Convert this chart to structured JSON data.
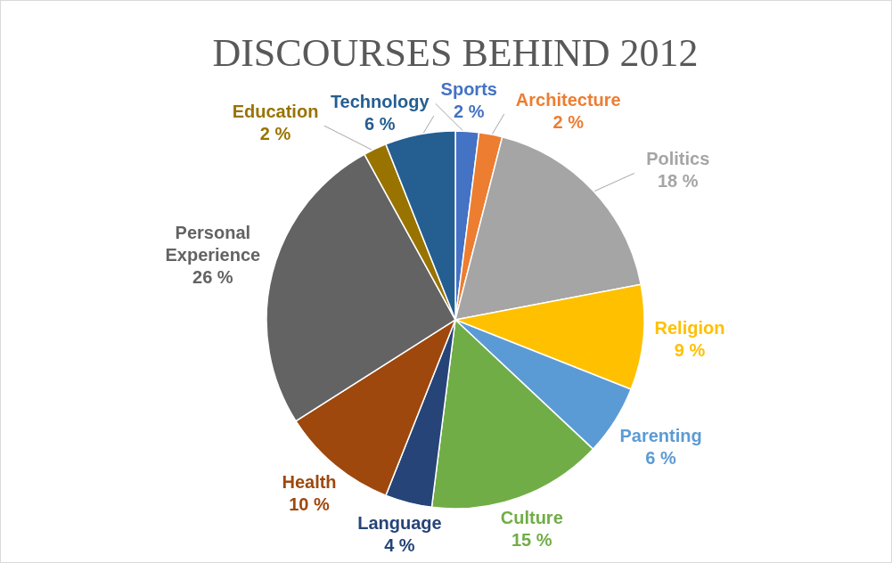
{
  "chart_data": {
    "type": "pie",
    "title": "DISCOURSES BEHIND 2012",
    "categories": [
      "Sports",
      "Architecture",
      "Politics",
      "Religion",
      "Parenting",
      "Culture",
      "Language",
      "Health",
      "Personal Experience",
      "Education",
      "Technology"
    ],
    "values": [
      2,
      2,
      18,
      9,
      6,
      15,
      4,
      10,
      26,
      2,
      6
    ],
    "value_labels": [
      "2 %",
      "2 %",
      "18 %",
      "9 %",
      "6 %",
      "15 %",
      "4 %",
      "10 %",
      "26 %",
      "2 %",
      "6 %"
    ],
    "colors": [
      "#4472c4",
      "#ed7d31",
      "#a5a5a5",
      "#ffc000",
      "#5b9bd5",
      "#70ad47",
      "#264478",
      "#9e480e",
      "#636363",
      "#997300",
      "#255e91"
    ]
  }
}
